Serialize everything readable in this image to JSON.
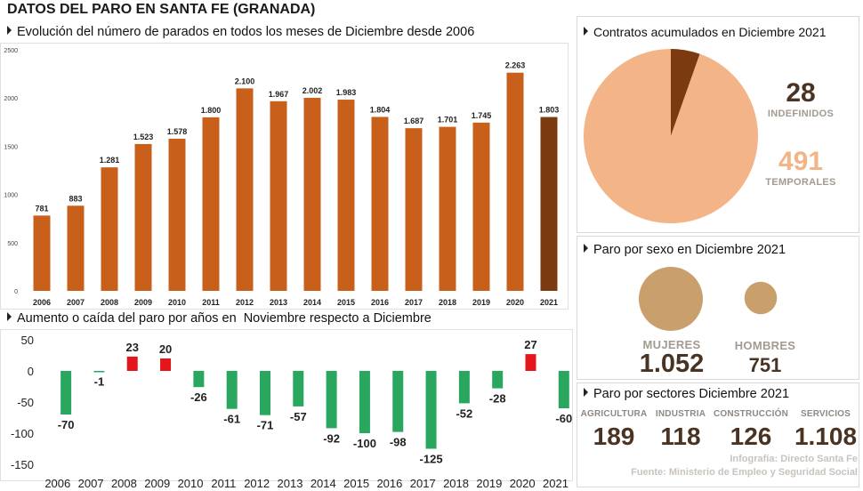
{
  "title": "DATOS DEL PARO EN SANTA FE (GRANADA)",
  "colors": {
    "bar": "#c8601b",
    "bar_highlight": "#7b3a10",
    "increase": "#e5161b",
    "decrease": "#2aa75e",
    "pie_light": "#f3b487",
    "pie_dark": "#7b3a10",
    "sex_circle": "#c9a06c"
  },
  "chart_data": [
    {
      "type": "bar",
      "title": "Evolución del número de parados en todos los meses de Diciembre desde 2006",
      "categories": [
        "2006",
        "2007",
        "2008",
        "2009",
        "2010",
        "2011",
        "2012",
        "2013",
        "2014",
        "2015",
        "2016",
        "2017",
        "2018",
        "2019",
        "2020",
        "2021"
      ],
      "values": [
        781,
        883,
        1281,
        1523,
        1578,
        1800,
        2100,
        1967,
        2002,
        1983,
        1804,
        1687,
        1701,
        1745,
        2263,
        1803
      ],
      "value_labels": [
        "781",
        "883",
        "1.281",
        "1.523",
        "1.578",
        "1.800",
        "2.100",
        "1.967",
        "2.002",
        "1.983",
        "1.804",
        "1.687",
        "1.701",
        "1.745",
        "2.263",
        "1.803"
      ],
      "ylim": [
        0,
        2500
      ],
      "yticks": [
        0,
        500,
        1000,
        1500,
        2000,
        2500
      ],
      "highlight": "2021"
    },
    {
      "type": "bar",
      "title_prefix": "Aumento o caída del paro por años en ",
      "title_bold": "Noviembre respecto a Diciembre",
      "categories": [
        "2006",
        "2007",
        "2008",
        "2009",
        "2010",
        "2011",
        "2012",
        "2013",
        "2014",
        "2015",
        "2016",
        "2017",
        "2018",
        "2019",
        "2020",
        "2021"
      ],
      "values": [
        -70,
        -1,
        23,
        20,
        -26,
        -61,
        -71,
        -57,
        -92,
        -100,
        -98,
        -125,
        -52,
        -28,
        27,
        -60
      ],
      "ylim": [
        -150,
        50
      ],
      "yticks": [
        50,
        0,
        -50,
        -100,
        -150
      ]
    },
    {
      "type": "pie",
      "title": "Contratos acumulados en Diciembre 2021",
      "slices": [
        {
          "label": "INDEFINIDOS",
          "value": 28
        },
        {
          "label": "TEMPORALES",
          "value": 491
        }
      ]
    }
  ],
  "sexo": {
    "title": "Paro por sexo en Diciembre 2021",
    "items": [
      {
        "label": "MUJERES",
        "value": "1.052",
        "count": 1052
      },
      {
        "label": "HOMBRES",
        "value": "751",
        "count": 751
      }
    ]
  },
  "sectores": {
    "title": "Paro por sectores Diciembre 2021",
    "items": [
      {
        "label": "AGRICULTURA",
        "value": "189"
      },
      {
        "label": "INDUSTRIA",
        "value": "118"
      },
      {
        "label": "CONSTRUCCIÓN",
        "value": "126"
      },
      {
        "label": "SERVICIOS",
        "value": "1.108"
      }
    ]
  },
  "credits": {
    "infografia": "Infografía: Directo Santa Fe",
    "fuente": "Fuente: Ministerio de Empleo y Seguridad Social"
  }
}
